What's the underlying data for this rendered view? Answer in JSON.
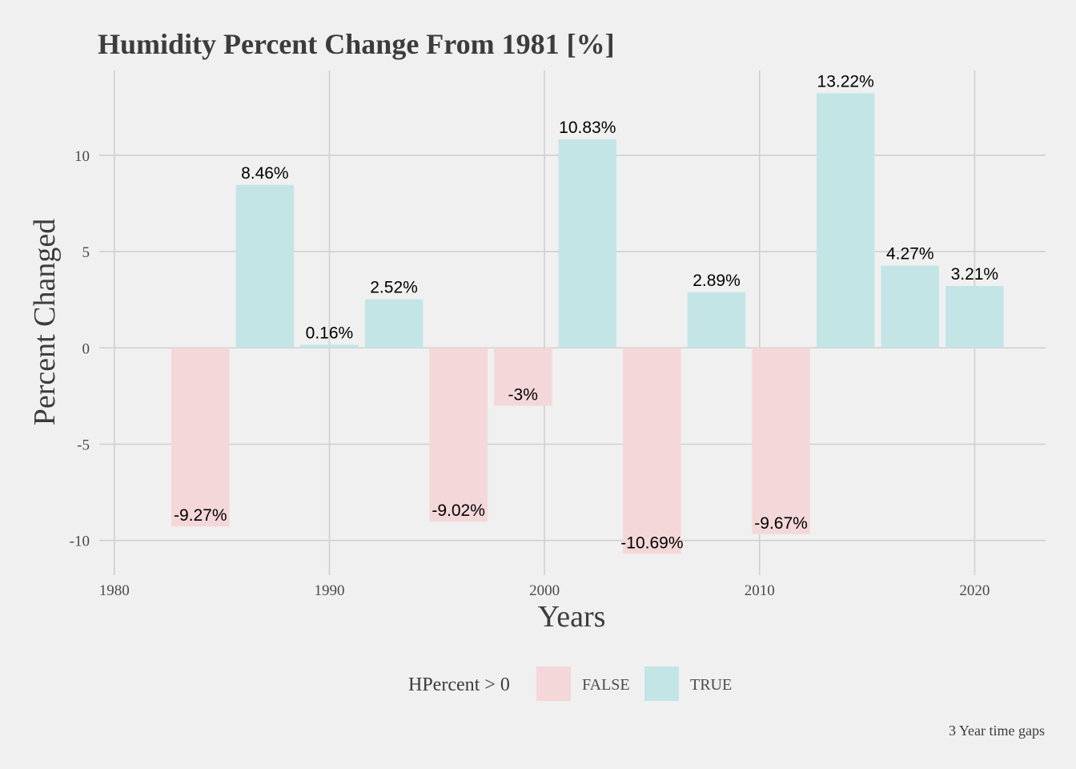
{
  "chart_data": {
    "type": "bar",
    "title": "Humidity Percent Change From 1981 [%]",
    "xlabel": "Years",
    "ylabel": "Percent Changed",
    "caption": "3 Year time gaps",
    "x": [
      1984,
      1987,
      1990,
      1993,
      1996,
      1999,
      2002,
      2005,
      2008,
      2011,
      2014,
      2017,
      2020
    ],
    "values": [
      -9.27,
      8.46,
      0.16,
      2.52,
      -9.02,
      -3,
      10.83,
      -10.69,
      2.89,
      -9.67,
      13.22,
      4.27,
      3.21
    ],
    "labels": [
      "-9.27%",
      "8.46%",
      "0.16%",
      "2.52%",
      "-9.02%",
      "-3%",
      "10.83%",
      "-10.69%",
      "2.89%",
      "-9.67%",
      "13.22%",
      "4.27%",
      "3.21%"
    ],
    "xlim": [
      1979.3,
      2023.3
    ],
    "ylim": [
      -11.8,
      14.4
    ],
    "x_ticks": [
      1980,
      1990,
      2000,
      2010,
      2020
    ],
    "x_tick_labels": [
      "1980",
      "1990",
      "2000",
      "2010",
      "2020"
    ],
    "y_ticks": [
      -10,
      -5,
      0,
      5,
      10
    ],
    "y_tick_labels": [
      "-10",
      "-5",
      "0",
      "5",
      "10"
    ],
    "grid": true,
    "legend": {
      "title": "HPercent > 0",
      "position": "bottom",
      "entries": [
        {
          "label": "FALSE",
          "color": "#f4d7d9"
        },
        {
          "label": "TRUE",
          "color": "#c3e5e6"
        }
      ]
    },
    "colors": {
      "negative": "#f4d7d9",
      "positive": "#c3e5e6",
      "background": "#f0f0f0",
      "grid": "#cfcfcf"
    }
  }
}
